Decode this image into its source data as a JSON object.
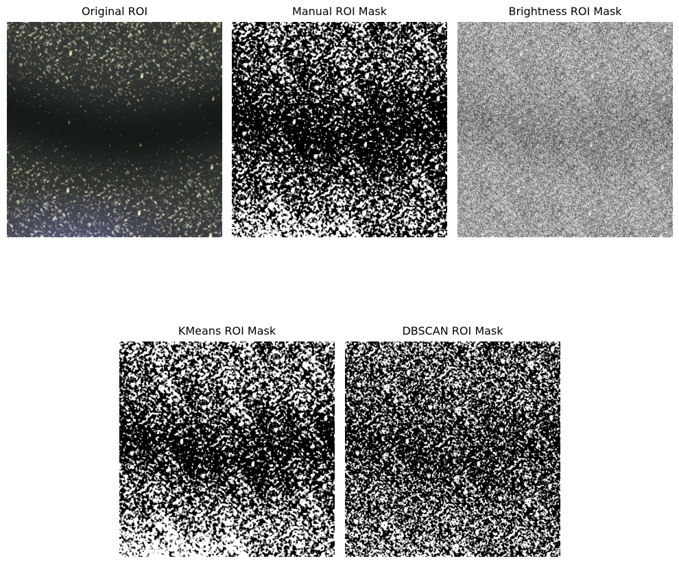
{
  "figure": {
    "panels": [
      {
        "title": "Original ROI",
        "kind": "original-photo"
      },
      {
        "title": "Manual ROI Mask",
        "kind": "binary-mask-dense-white"
      },
      {
        "title": "Brightness ROI Mask",
        "kind": "grayscale-brightness"
      },
      {
        "title": "KMeans ROI Mask",
        "kind": "binary-mask-bright"
      },
      {
        "title": "DBSCAN ROI Mask",
        "kind": "binary-mask-sparse-white"
      }
    ]
  },
  "colors": {
    "background": "#ffffff",
    "title_text": "#000000",
    "original_tint": "#d8d4b8",
    "original_dark": "#1a1c1c",
    "original_bottom_tint": "#4a4860"
  }
}
